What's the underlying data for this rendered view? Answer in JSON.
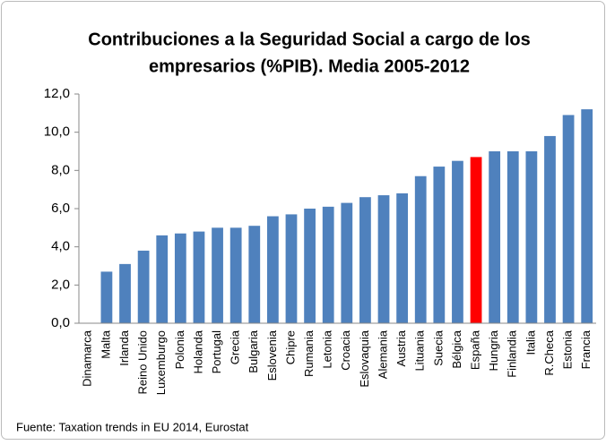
{
  "chart_data": {
    "type": "bar",
    "title": [
      "Contribuciones a la Seguridad Social a cargo de los",
      "empresarios (%PIB). Media 2005-2012"
    ],
    "source": "Fuente: Taxation trends in EU 2014, Eurostat",
    "categories": [
      "Dinamarca",
      "Malta",
      "Irlanda",
      "Reino Unido",
      "Luxemburgo",
      "Polonia",
      "Holanda",
      "Portugal",
      "Grecia",
      "Bulgaria",
      "Eslovenia",
      "Chipre",
      "Rumania",
      "Letonia",
      "Croacia",
      "Eslovaquia",
      "Alemania",
      "Austria",
      "Lituania",
      "Suecia",
      "Bélgica",
      "España",
      "Hungria",
      "Finlandia",
      "Italia",
      "R.Checa",
      "Estonia",
      "Francia"
    ],
    "values": [
      0,
      2.7,
      3.1,
      3.8,
      4.6,
      4.7,
      4.8,
      5.0,
      5.0,
      5.1,
      5.6,
      5.7,
      6.0,
      6.1,
      6.3,
      6.6,
      6.7,
      6.8,
      7.7,
      8.2,
      8.5,
      8.7,
      9.0,
      9.0,
      9.0,
      9.8,
      10.9,
      11.2
    ],
    "color": "#4f81bd",
    "highlight": {
      "category": "España",
      "color": "#ff0000"
    },
    "ylim": [
      0,
      12
    ],
    "yticks": [
      {
        "value": 0,
        "label": "0,0"
      },
      {
        "value": 2,
        "label": "2,0"
      },
      {
        "value": 4,
        "label": "4,0"
      },
      {
        "value": 6,
        "label": "6,0"
      },
      {
        "value": 8,
        "label": "8,0"
      },
      {
        "value": 10,
        "label": "10,0"
      },
      {
        "value": 12,
        "label": "12,0"
      }
    ],
    "grid": false
  }
}
